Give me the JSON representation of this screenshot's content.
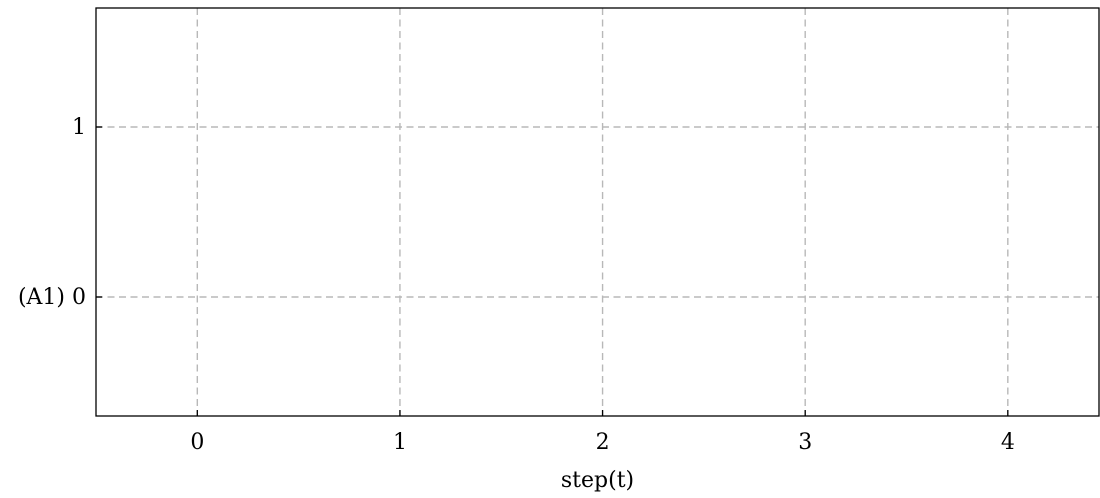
{
  "chart_data": {
    "type": "line",
    "title": "",
    "xlabel": "step(t)",
    "ylabel": "",
    "x_ticks": [
      0,
      1,
      2,
      3,
      4
    ],
    "y_ticks": [
      {
        "value": 0,
        "label": "(A1) 0"
      },
      {
        "value": 1,
        "label": "1"
      }
    ],
    "xlim": [
      -0.5,
      4.45
    ],
    "ylim": [
      -0.7,
      1.7
    ],
    "grid": true,
    "series": []
  }
}
